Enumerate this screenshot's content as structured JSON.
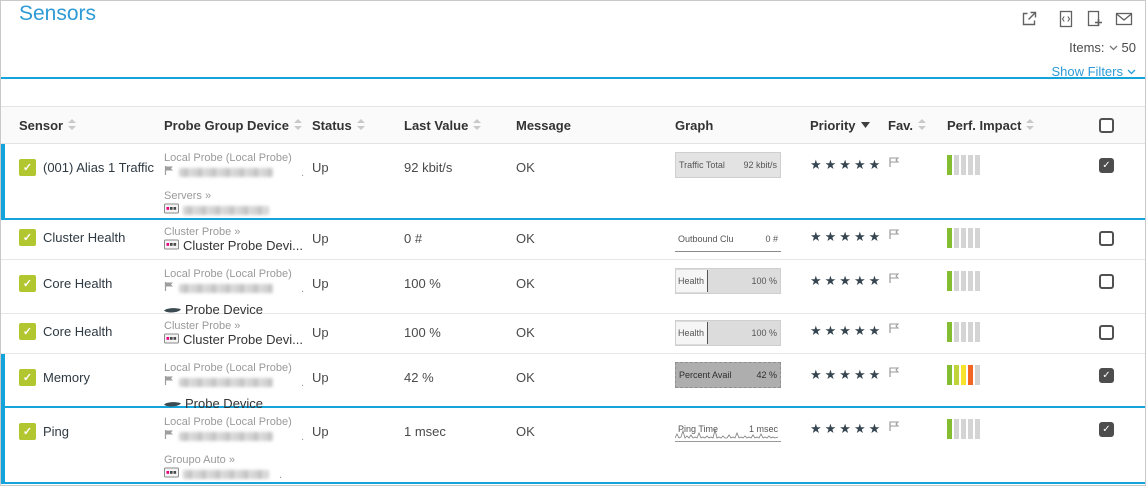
{
  "header": {
    "title": "Sensors",
    "toolbar_icons": [
      "external-link-icon",
      "code-file-icon",
      "file-plus-icon",
      "mail-icon"
    ],
    "items_label": "Items:",
    "items_count": "50",
    "show_filters_label": "Show Filters"
  },
  "colors": {
    "accent_blue": "#14a3da",
    "title_blue": "#2e9bd6",
    "status_up_green": "#b1c62f",
    "perf": {
      "green": "#84bd32",
      "lightgreen": "#c0d439",
      "yellow": "#f7e32c",
      "orange": "#f26522",
      "gray": "#d4d4d4"
    }
  },
  "table": {
    "columns": [
      {
        "label": "Sensor",
        "sort": "both"
      },
      {
        "label": "Probe Group Device",
        "sort": "both"
      },
      {
        "label": "Status",
        "sort": "both"
      },
      {
        "label": "Last Value",
        "sort": "both"
      },
      {
        "label": "Message",
        "sort": "none"
      },
      {
        "label": "Graph",
        "sort": "none"
      },
      {
        "label": "Priority",
        "sort": "desc"
      },
      {
        "label": "Fav.",
        "sort": "both"
      },
      {
        "label": "Perf. Impact",
        "sort": "both"
      }
    ],
    "rows": [
      {
        "name": "(001) Alias 1 Traffic",
        "selected": true,
        "checked": true,
        "status": "Up",
        "last_value": "92 kbit/s",
        "message": "OK",
        "graph": {
          "label": "Traffic Total",
          "value": "92 kbit/s",
          "style": "filled-light"
        },
        "priority": 5,
        "perf_impact": [
          "green",
          "gray",
          "gray",
          "gray",
          "gray"
        ],
        "probe_lines": [
          {
            "kind": "group",
            "text": "Local Probe (Local Probe)"
          },
          {
            "kind": "flag-redacted",
            "suffix": "."
          },
          {
            "kind": "gap"
          },
          {
            "kind": "group",
            "text": "Servers »"
          },
          {
            "kind": "device-redacted",
            "suffix": ""
          }
        ]
      },
      {
        "name": "Cluster Health",
        "selected": false,
        "checked": false,
        "status": "Up",
        "last_value": "0 #",
        "message": "OK",
        "graph": {
          "label": "Outbound Clu",
          "value": "0 #",
          "style": "underline"
        },
        "priority": 5,
        "perf_impact": [
          "green",
          "gray",
          "gray",
          "gray",
          "gray"
        ],
        "probe_lines": [
          {
            "kind": "group",
            "text": "Cluster Probe »"
          },
          {
            "kind": "device",
            "text": "Cluster Probe Devi..."
          }
        ]
      },
      {
        "name": "Core Health",
        "selected": false,
        "checked": false,
        "status": "Up",
        "last_value": "100 %",
        "message": "OK",
        "graph": {
          "label": "Health",
          "value": "100 %",
          "style": "filled"
        },
        "priority": 5,
        "perf_impact": [
          "green",
          "gray",
          "gray",
          "gray",
          "gray"
        ],
        "probe_lines": [
          {
            "kind": "group",
            "text": "Local Probe (Local Probe)"
          },
          {
            "kind": "flag-redacted",
            "suffix": "."
          },
          {
            "kind": "probe-device",
            "text": "Probe Device"
          }
        ]
      },
      {
        "name": "Core Health",
        "selected": false,
        "checked": false,
        "status": "Up",
        "last_value": "100 %",
        "message": "OK",
        "graph": {
          "label": "Health",
          "value": "100 %",
          "style": "filled"
        },
        "priority": 5,
        "perf_impact": [
          "green",
          "gray",
          "gray",
          "gray",
          "gray"
        ],
        "probe_lines": [
          {
            "kind": "group",
            "text": "Cluster Probe »"
          },
          {
            "kind": "device",
            "text": "Cluster Probe Devi..."
          }
        ]
      },
      {
        "name": "Memory",
        "selected": true,
        "checked": true,
        "status": "Up",
        "last_value": "42 %",
        "message": "OK",
        "graph": {
          "label": "Percent Avail",
          "value": "42 %",
          "style": "filled-dark"
        },
        "priority": 5,
        "perf_impact": [
          "green",
          "lightgreen",
          "yellow",
          "orange",
          "gray"
        ],
        "probe_lines": [
          {
            "kind": "group",
            "text": "Local Probe (Local Probe)"
          },
          {
            "kind": "flag-redacted",
            "suffix": "."
          },
          {
            "kind": "probe-device",
            "text": "Probe Device"
          }
        ]
      },
      {
        "name": "Ping",
        "selected": true,
        "checked": true,
        "status": "Up",
        "last_value": "1 msec",
        "message": "OK",
        "graph": {
          "label": "Ping Time",
          "value": "1 msec",
          "style": "sparkline"
        },
        "priority": 5,
        "perf_impact": [
          "green",
          "gray",
          "gray",
          "gray",
          "gray"
        ],
        "probe_lines": [
          {
            "kind": "group",
            "text": "Local Probe (Local Probe)"
          },
          {
            "kind": "flag-redacted",
            "suffix": "."
          },
          {
            "kind": "gap"
          },
          {
            "kind": "group",
            "text": "Groupo Auto »"
          },
          {
            "kind": "device-redacted",
            "suffix": "."
          }
        ]
      }
    ]
  }
}
